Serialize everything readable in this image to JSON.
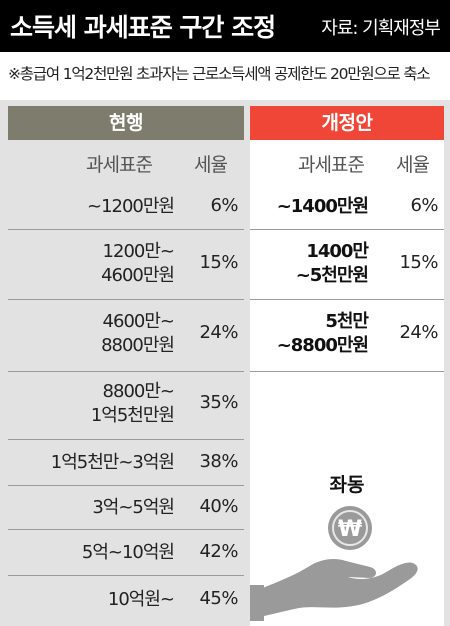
{
  "header": {
    "title": "소득세 과세표준 구간 조정",
    "source": "자료: 기획재정부"
  },
  "note": "※총급여 1억2천만원 초과자는 근로소득세액 공제한도 20만원으로 축소",
  "current": {
    "heading": "현행",
    "col_range": "과세표준",
    "col_rate": "세율",
    "rows": [
      {
        "range": [
          "~1200만원"
        ],
        "rate": "6%"
      },
      {
        "range": [
          "1200만~",
          "4600만원"
        ],
        "rate": "15%"
      },
      {
        "range": [
          "4600만~",
          "8800만원"
        ],
        "rate": "24%"
      },
      {
        "range": [
          "8800만~",
          "1억5천만원"
        ],
        "rate": "35%"
      },
      {
        "range": [
          "1억5천만~3억원"
        ],
        "rate": "38%"
      },
      {
        "range": [
          "3억~5억원"
        ],
        "rate": "40%"
      },
      {
        "range": [
          "5억~10억원"
        ],
        "rate": "42%"
      },
      {
        "range": [
          "10억원~"
        ],
        "rate": "45%"
      }
    ]
  },
  "revised": {
    "heading": "개정안",
    "col_range": "과세표준",
    "col_rate": "세율",
    "rows": [
      {
        "range": [
          "~1400만원"
        ],
        "rate": "6%"
      },
      {
        "range": [
          "1400만",
          "~5천만원"
        ],
        "rate": "15%"
      },
      {
        "range": [
          "5천만",
          "~8800만원"
        ],
        "rate": "24%"
      }
    ],
    "same_label": "좌동",
    "coin_symbol": "₩"
  },
  "colors": {
    "current_header": "#7e7c6d",
    "revised_header": "#f04637",
    "background": "#e2e2e2"
  }
}
